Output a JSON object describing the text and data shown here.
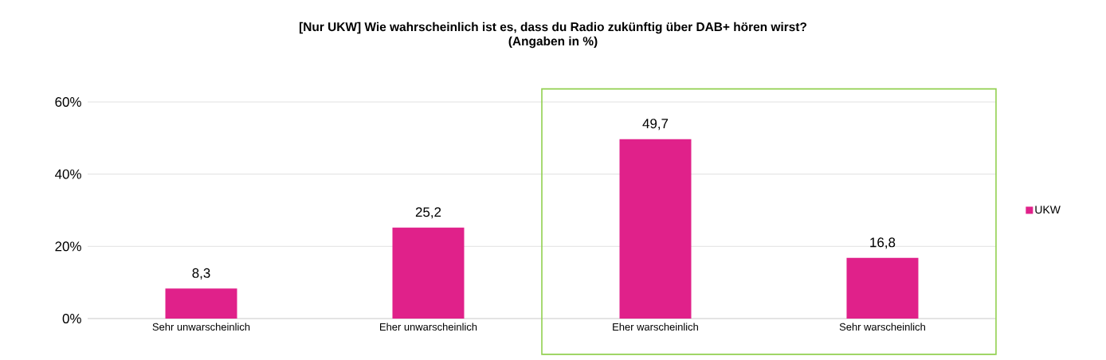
{
  "chart_data": {
    "type": "bar",
    "title": "[Nur UKW] Wie wahrscheinlich ist es, dass du Radio zukünftig über DAB+ hören wirst?",
    "subtitle": "(Angaben in %)",
    "categories": [
      "Sehr unwarscheinlich",
      "Eher unwarscheinlich",
      "Eher warscheinlich",
      "Sehr warscheinlich"
    ],
    "series": [
      {
        "name": "UKW",
        "color": "#e0218a",
        "values": [
          8.3,
          25.2,
          49.7,
          16.8
        ],
        "value_labels": [
          "8,3",
          "25,2",
          "49,7",
          "16,8"
        ]
      }
    ],
    "ylim": [
      0,
      60
    ],
    "yticks": [
      {
        "value": 0,
        "label": "0%"
      },
      {
        "value": 20,
        "label": "20%"
      },
      {
        "value": 40,
        "label": "40%"
      },
      {
        "value": 60,
        "label": "60%"
      }
    ],
    "grid": "y",
    "legend": "right"
  }
}
